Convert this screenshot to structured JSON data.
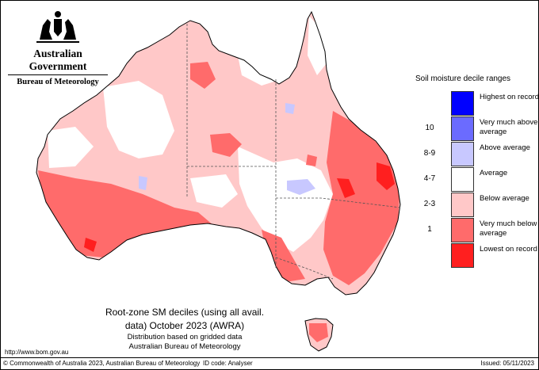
{
  "header": {
    "government": "Australian Government",
    "bureau": "Bureau of Meteorology"
  },
  "legend": {
    "title": "Soil moisture decile ranges",
    "items": [
      {
        "range": "",
        "label": "Highest on record",
        "color": "#0000ff"
      },
      {
        "range": "10",
        "label": "Very much above average",
        "color": "#6b6bff"
      },
      {
        "range": "8-9",
        "label": "Above average",
        "color": "#c8c8ff"
      },
      {
        "range": "4-7",
        "label": "Average",
        "color": "#ffffff"
      },
      {
        "range": "2-3",
        "label": "Below average",
        "color": "#ffc8c8"
      },
      {
        "range": "1",
        "label": "Very much below average",
        "color": "#ff6b6b"
      },
      {
        "range": "",
        "label": "Lowest on record",
        "color": "#ff1f1f"
      }
    ]
  },
  "caption": {
    "title_line1": "Root-zone SM deciles (using all avail.",
    "title_line2": "data) October 2023 (AWRA)",
    "sub_line1": "Distribution based on gridded data",
    "sub_line2": "Australian Bureau of Meteorology"
  },
  "footer": {
    "url": "http://www.bom.gov.au",
    "copyright": "© Commonwealth of Australia 2023, Australian Bureau of Meteorology",
    "id_code": "ID code: Analyser",
    "issued": "Issued: 05/11/2023"
  },
  "map": {
    "region": "Australia",
    "variable": "Root-zone soil moisture deciles",
    "period": "October 2023"
  }
}
